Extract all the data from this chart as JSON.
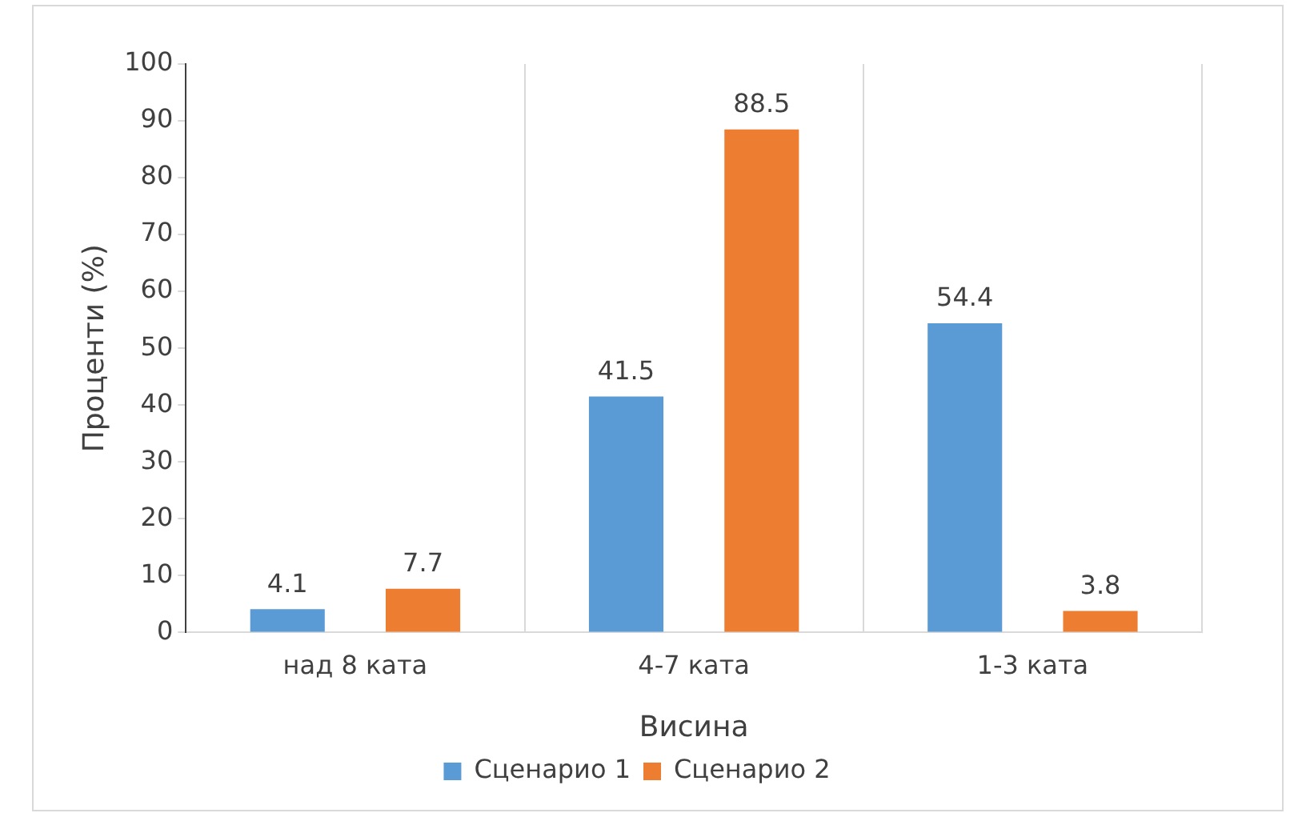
{
  "chart_data": {
    "type": "bar",
    "xlabel": "Висина",
    "ylabel": "Проценти (%)",
    "categories": [
      "над 8 ката",
      "4-7 ката",
      "1-3 ката"
    ],
    "series": [
      {
        "name": "Сценарио 1",
        "color": "#5b9bd5",
        "values": [
          4.1,
          41.5,
          54.4
        ]
      },
      {
        "name": "Сценарио 2",
        "color": "#ed7d31",
        "values": [
          7.7,
          88.5,
          3.8
        ]
      }
    ],
    "ylim": [
      0,
      100
    ],
    "yticks": [
      0,
      10,
      20,
      30,
      40,
      50,
      60,
      70,
      80,
      90,
      100
    ],
    "grid": "x",
    "legend": "bottom",
    "data_labels": true
  }
}
